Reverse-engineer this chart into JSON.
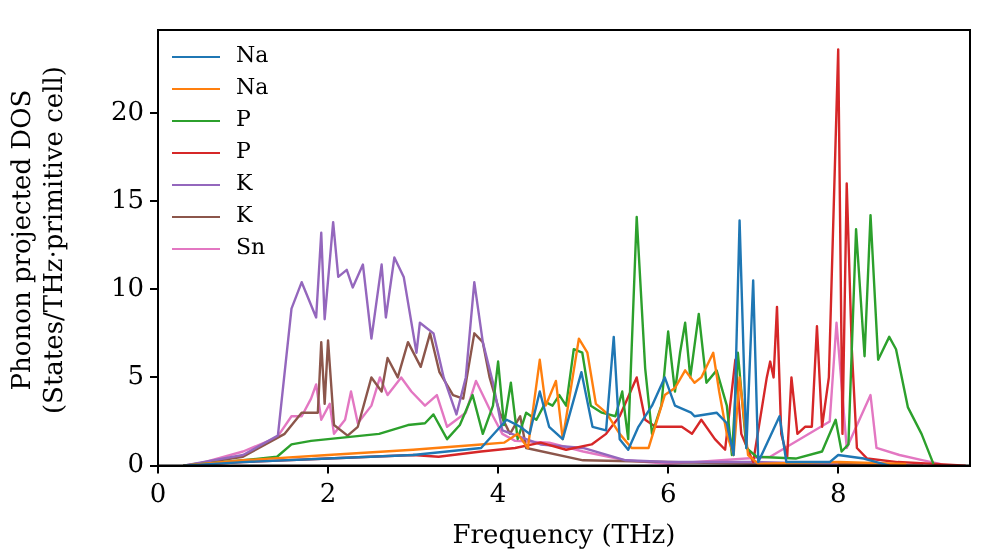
{
  "chart_data": {
    "type": "line",
    "xlabel": "Frequency (THz)",
    "ylabel": "Phonon projected DOS (States/THz·primitive cell)",
    "xlim": [
      0,
      9.55
    ],
    "ylim": [
      0,
      24.7
    ],
    "xticks": [
      0,
      2,
      4,
      6,
      8
    ],
    "yticks": [
      0,
      5,
      10,
      15,
      20
    ],
    "grid": false,
    "legend": "top left",
    "marker": "none",
    "line_style": "solid",
    "series": [
      {
        "name": "Na",
        "color": "#1f77b4",
        "x": [
          0.3,
          1,
          2,
          3,
          3.8,
          4.1,
          4.26,
          4.37,
          4.49,
          4.6,
          4.76,
          4.98,
          5.11,
          5.27,
          5.36,
          5.43,
          5.53,
          5.65,
          5.81,
          5.96,
          6.08,
          6.27,
          6.31,
          6.57,
          6.69,
          6.77,
          6.84,
          6.92,
          7.0,
          7.06,
          7.31,
          7.39,
          7.9,
          8.0,
          8.3,
          8.6
        ],
        "values": [
          0,
          0.2,
          0.4,
          0.6,
          1.0,
          2.6,
          2.2,
          1.8,
          4.2,
          2.2,
          1.5,
          5.3,
          2.2,
          2.0,
          7.3,
          1.5,
          0.9,
          2.2,
          3.4,
          5.0,
          3.4,
          3.0,
          2.8,
          3.0,
          2.4,
          0.6,
          13.9,
          1.0,
          10.5,
          0.2,
          2.8,
          0.2,
          0.2,
          0.6,
          0.4,
          0
        ]
      },
      {
        "name": "Na",
        "color": "#ff7f0e",
        "x": [
          0.3,
          1,
          2,
          3,
          3.8,
          4.07,
          4.23,
          4.35,
          4.49,
          4.56,
          4.68,
          4.76,
          4.95,
          5.05,
          5.15,
          5.27,
          5.43,
          5.57,
          5.77,
          5.96,
          6.08,
          6.2,
          6.31,
          6.39,
          6.53,
          6.6,
          6.69,
          6.77,
          6.84,
          6.94,
          7.06,
          8.0,
          8.8
        ],
        "values": [
          0,
          0.3,
          0.6,
          0.9,
          1.2,
          1.3,
          1.8,
          1.0,
          6.0,
          3.4,
          4.8,
          1.5,
          7.2,
          6.4,
          3.5,
          3.0,
          1.8,
          1.0,
          1.0,
          4.0,
          4.4,
          5.4,
          4.7,
          5.0,
          6.4,
          4.2,
          1.8,
          0.6,
          5.0,
          0.6,
          0.1,
          0.2,
          0.1
        ]
      },
      {
        "name": "P",
        "color": "#2ca02c",
        "x": [
          0.3,
          1,
          1.4,
          1.57,
          1.8,
          2.2,
          2.6,
          2.94,
          3.14,
          3.24,
          3.4,
          3.55,
          3.7,
          3.82,
          3.94,
          4.0,
          4.07,
          4.15,
          4.23,
          4.33,
          4.45,
          4.56,
          4.64,
          4.72,
          4.8,
          4.89,
          4.99,
          5.09,
          5.22,
          5.38,
          5.46,
          5.53,
          5.63,
          5.73,
          5.81,
          5.92,
          6.0,
          6.08,
          6.14,
          6.2,
          6.26,
          6.36,
          6.45,
          6.57,
          6.69,
          6.75,
          6.82,
          6.92,
          7.04,
          7.5,
          7.81,
          7.97,
          8.04,
          8.12,
          8.21,
          8.31,
          8.38,
          8.47,
          8.6,
          8.68,
          8.82,
          8.98,
          9.12
        ],
        "values": [
          0,
          0.3,
          0.5,
          1.2,
          1.4,
          1.6,
          1.8,
          2.3,
          2.4,
          2.9,
          1.5,
          2.3,
          4.0,
          1.8,
          3.4,
          5.9,
          2.3,
          4.7,
          1.5,
          3.0,
          2.6,
          3.6,
          3.4,
          4.0,
          3.4,
          6.6,
          6.4,
          3.4,
          3.0,
          2.8,
          4.2,
          1.5,
          14.1,
          5.5,
          1.8,
          3.4,
          7.6,
          4.2,
          6.4,
          8.1,
          5.0,
          8.6,
          4.7,
          5.4,
          3.4,
          0.6,
          6.4,
          1.0,
          0.5,
          0.4,
          0.8,
          2.6,
          0.8,
          1.2,
          13.4,
          6.2,
          14.2,
          6.0,
          7.3,
          6.6,
          3.3,
          1.8,
          0.1
        ]
      },
      {
        "name": "P",
        "color": "#d62728",
        "x": [
          0.3,
          1,
          2,
          3,
          3.3,
          3.8,
          4.2,
          4.5,
          4.8,
          5.1,
          5.27,
          5.43,
          5.63,
          5.73,
          5.85,
          6.16,
          6.28,
          6.39,
          6.55,
          6.67,
          6.79,
          6.86,
          7.0,
          7.16,
          7.2,
          7.24,
          7.28,
          7.33,
          7.4,
          7.45,
          7.52,
          7.61,
          7.69,
          7.75,
          7.81,
          7.89,
          8.0,
          8.05,
          8.1,
          8.16,
          8.22,
          8.34,
          8.7,
          9.14,
          9.5
        ],
        "values": [
          0,
          0.2,
          0.4,
          0.6,
          0.5,
          0.8,
          1.0,
          1.3,
          0.9,
          1.2,
          1.8,
          2.8,
          5.0,
          2.6,
          2.2,
          2.2,
          1.8,
          2.6,
          1.5,
          0.9,
          6.0,
          1.8,
          0.2,
          5.0,
          5.9,
          5.0,
          9.0,
          1.8,
          0.5,
          5.0,
          1.8,
          2.2,
          2.2,
          7.9,
          2.2,
          5.0,
          23.6,
          1.8,
          16.0,
          6.6,
          1.0,
          0.4,
          0.2,
          0.1,
          0
        ]
      },
      {
        "name": "K",
        "color": "#9467bd",
        "x": [
          0.3,
          1,
          1.41,
          1.57,
          1.69,
          1.86,
          1.92,
          1.96,
          2.06,
          2.12,
          2.22,
          2.29,
          2.41,
          2.51,
          2.63,
          2.68,
          2.78,
          2.89,
          3.04,
          3.08,
          3.24,
          3.36,
          3.51,
          3.62,
          3.72,
          3.82,
          3.94,
          4.05,
          4.5,
          5.0,
          5.5,
          6.0,
          7.0,
          8.0
        ],
        "values": [
          0,
          0.6,
          1.7,
          8.9,
          10.4,
          8.4,
          13.2,
          8.3,
          13.8,
          10.7,
          11.1,
          10.1,
          11.4,
          7.2,
          11.4,
          8.4,
          11.8,
          10.7,
          6.4,
          8.1,
          7.5,
          5.0,
          2.9,
          5.0,
          10.4,
          7.0,
          4.7,
          2.0,
          1.2,
          1.0,
          0.3,
          0.2,
          0.2,
          0.1
        ]
      },
      {
        "name": "K",
        "color": "#8c564b",
        "x": [
          0.3,
          1,
          1.49,
          1.69,
          1.88,
          1.92,
          1.96,
          2.0,
          2.07,
          2.23,
          2.35,
          2.51,
          2.63,
          2.7,
          2.82,
          2.94,
          3.09,
          3.2,
          3.31,
          3.47,
          3.59,
          3.72,
          3.82,
          3.9,
          4.02,
          4.14,
          4.26,
          4.33,
          5.0,
          6.0,
          7.0,
          8.0,
          9.0
        ],
        "values": [
          0,
          0.5,
          1.8,
          3.0,
          3.0,
          7.0,
          3.5,
          7.1,
          2.3,
          1.7,
          2.2,
          5.0,
          4.2,
          6.1,
          5.0,
          7.0,
          5.6,
          7.5,
          5.3,
          4.0,
          3.8,
          7.5,
          7.0,
          5.0,
          3.0,
          1.8,
          2.8,
          1.0,
          0.3,
          0.2,
          0.1,
          0.1,
          0
        ]
      },
      {
        "name": "Sn",
        "color": "#e377c2",
        "x": [
          0.4,
          1,
          1.4,
          1.57,
          1.69,
          1.8,
          1.86,
          1.92,
          2.02,
          2.07,
          2.2,
          2.27,
          2.35,
          2.51,
          2.61,
          2.7,
          2.86,
          2.98,
          3.14,
          3.28,
          3.4,
          3.51,
          3.62,
          3.74,
          3.82,
          3.94,
          4.05,
          4.2,
          4.6,
          5.0,
          5.5,
          6.0,
          7.2,
          7.9,
          7.98,
          8.1,
          8.38,
          8.45,
          8.72,
          9.0,
          9.2
        ],
        "values": [
          0,
          0.8,
          1.6,
          2.8,
          2.8,
          3.8,
          4.6,
          2.6,
          3.5,
          1.8,
          2.6,
          4.2,
          2.4,
          3.4,
          5.0,
          4.0,
          5.0,
          4.2,
          3.4,
          4.0,
          2.2,
          2.6,
          3.0,
          4.8,
          4.0,
          2.8,
          1.8,
          1.4,
          1.3,
          0.8,
          0.3,
          0.1,
          0.5,
          2.5,
          8.1,
          1.0,
          4.0,
          1.0,
          0.6,
          0.3,
          0.1
        ]
      }
    ]
  }
}
